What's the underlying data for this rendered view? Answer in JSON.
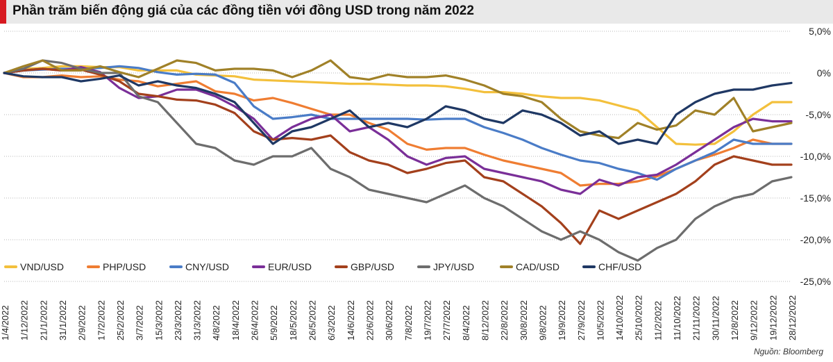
{
  "chart_data": {
    "type": "line",
    "title": "Phần trăm biến động giá của các đồng tiền với đồng USD trong năm 2022",
    "source": "Nguồn: Bloomberg",
    "ylim": [
      -25,
      5
    ],
    "yticks": [
      5,
      0,
      -5,
      -10,
      -15,
      -20,
      -25
    ],
    "ytick_labels": [
      "5,0%",
      "0%",
      "-5,0%",
      "-10,0%",
      "-15,0%",
      "-20,0%",
      "-25,0%"
    ],
    "x": [
      "1/4/2022",
      "1/12/2022",
      "21/1/2022",
      "31/1/2022",
      "2/9/2022",
      "17/2/2022",
      "25/2/2022",
      "3/7/2022",
      "15/3/2022",
      "23/3/2022",
      "31/3/2022",
      "4/8/2022",
      "18/4/2022",
      "26/4/2022",
      "5/9/2022",
      "18/5/2022",
      "26/5/2022",
      "6/3/2022",
      "14/6/2022",
      "22/6/2022",
      "30/6/2022",
      "7/8/2022",
      "19/7/2022",
      "27/7/2022",
      "8/4/2022",
      "8/12/2022",
      "22/8/2022",
      "30/8/2022",
      "9/8/2022",
      "19/9/2022",
      "27/9/2022",
      "10/5/2022",
      "14/10/2022",
      "25/10/2022",
      "11/2/2022",
      "11/10/2022",
      "21/11/2022",
      "30/11/2022",
      "12/8/2022",
      "9/12/2022",
      "19/12/2022",
      "28/12/2022"
    ],
    "series": [
      {
        "name": "VND/USD",
        "color": "#f3c03c",
        "values": [
          0,
          0.5,
          0.6,
          0.8,
          0.8,
          0.7,
          0.7,
          0.3,
          0.3,
          0.3,
          -0.2,
          -0.3,
          -0.4,
          -0.8,
          -0.9,
          -1.0,
          -1.1,
          -1.2,
          -1.3,
          -1.3,
          -1.4,
          -1.5,
          -1.5,
          -1.6,
          -1.9,
          -2.3,
          -2.3,
          -2.5,
          -2.8,
          -3.0,
          -3.0,
          -3.3,
          -3.9,
          -4.5,
          -6.5,
          -8.5,
          -8.6,
          -8.5,
          -7.0,
          -5.0,
          -3.5,
          -3.5
        ]
      },
      {
        "name": "PHP/USD",
        "color": "#ef7d32",
        "values": [
          0,
          -0.5,
          -0.5,
          -0.3,
          -0.5,
          -0.4,
          -0.8,
          -1.0,
          -1.6,
          -1.3,
          -1.0,
          -2.2,
          -2.5,
          -3.3,
          -3.0,
          -3.6,
          -4.3,
          -5.0,
          -5.0,
          -6.0,
          -6.8,
          -8.5,
          -9.2,
          -9.0,
          -9.0,
          -9.8,
          -10.5,
          -11.0,
          -11.5,
          -12.0,
          -13.5,
          -13.3,
          -13.3,
          -13.0,
          -12.4,
          -11.5,
          -10.5,
          -9.8,
          -9.0,
          -8.0,
          -8.5,
          -8.5
        ]
      },
      {
        "name": "CNY/USD",
        "color": "#4a7cc7",
        "values": [
          0,
          0.3,
          0.4,
          0.5,
          0.5,
          0.6,
          0.8,
          0.6,
          0.1,
          -0.2,
          -0.1,
          -0.2,
          -1.2,
          -4.0,
          -5.5,
          -5.3,
          -5.0,
          -5.5,
          -5.5,
          -5.5,
          -5.5,
          -5.5,
          -5.6,
          -5.5,
          -5.5,
          -6.5,
          -7.2,
          -8.0,
          -9.0,
          -9.8,
          -10.5,
          -10.8,
          -11.5,
          -12.0,
          -12.8,
          -11.5,
          -10.5,
          -9.5,
          -8.0,
          -8.5,
          -8.5,
          -8.5
        ]
      },
      {
        "name": "EUR/USD",
        "color": "#7a2f98",
        "values": [
          0,
          0.3,
          0.5,
          0.3,
          0.7,
          0.1,
          -1.8,
          -3.0,
          -2.8,
          -2.0,
          -2.0,
          -2.8,
          -4.0,
          -5.5,
          -8.0,
          -6.5,
          -5.5,
          -5.0,
          -7.0,
          -6.5,
          -8.0,
          -10.0,
          -11.0,
          -10.2,
          -10.0,
          -11.5,
          -12.0,
          -12.5,
          -13.0,
          -14.0,
          -14.5,
          -12.8,
          -13.5,
          -12.5,
          -12.2,
          -11.0,
          -9.5,
          -8.0,
          -6.5,
          -5.5,
          -5.8,
          -5.8
        ]
      },
      {
        "name": "GBP/USD",
        "color": "#a3401c",
        "values": [
          0,
          0.3,
          0.5,
          0.3,
          0.4,
          -0.2,
          -1.0,
          -2.5,
          -2.8,
          -3.2,
          -3.3,
          -3.8,
          -4.8,
          -7.0,
          -8.0,
          -7.8,
          -8.0,
          -7.5,
          -9.5,
          -10.5,
          -11.0,
          -12.0,
          -11.5,
          -10.8,
          -10.5,
          -12.5,
          -13.0,
          -14.5,
          -16.0,
          -18.0,
          -20.5,
          -16.5,
          -17.5,
          -16.5,
          -15.5,
          -14.5,
          -13.0,
          -11.0,
          -10.0,
          -10.5,
          -11.0,
          -11.0
        ]
      },
      {
        "name": "JPY/USD",
        "color": "#6d6d6d",
        "values": [
          0,
          0.5,
          1.5,
          1.2,
          0.5,
          0.0,
          0.0,
          -2.8,
          -3.5,
          -6.0,
          -8.5,
          -9.0,
          -10.5,
          -11.0,
          -10.0,
          -10.0,
          -9.0,
          -11.5,
          -12.5,
          -14.0,
          -14.5,
          -15.0,
          -15.5,
          -14.5,
          -13.5,
          -15.0,
          -16.0,
          -17.5,
          -19.0,
          -20.0,
          -19.0,
          -20.0,
          -21.5,
          -22.5,
          -21.0,
          -20.0,
          -17.5,
          -16.0,
          -15.0,
          -14.5,
          -13.0,
          -12.5
        ]
      },
      {
        "name": "CAD/USD",
        "color": "#a08128",
        "values": [
          0,
          0.8,
          1.5,
          0.3,
          0.3,
          0.8,
          0.1,
          -0.5,
          0.5,
          1.5,
          1.2,
          0.3,
          0.5,
          0.5,
          0.3,
          -0.5,
          0.3,
          1.5,
          -0.5,
          -0.8,
          -0.2,
          -0.5,
          -0.5,
          -0.3,
          -0.8,
          -1.5,
          -2.5,
          -2.8,
          -3.5,
          -5.5,
          -7.0,
          -7.5,
          -7.8,
          -6.0,
          -6.8,
          -6.3,
          -4.5,
          -5.0,
          -3.0,
          -7.0,
          -6.5,
          -6.0
        ]
      },
      {
        "name": "CHF/USD",
        "color": "#1f3864",
        "values": [
          0,
          -0.4,
          -0.5,
          -0.5,
          -1.0,
          -0.7,
          -0.3,
          -1.5,
          -1.0,
          -1.5,
          -1.8,
          -2.5,
          -3.5,
          -6.0,
          -8.5,
          -7.0,
          -6.5,
          -5.5,
          -4.5,
          -6.5,
          -6.0,
          -6.5,
          -5.5,
          -4.0,
          -4.5,
          -5.5,
          -6.0,
          -4.5,
          -5.0,
          -6.0,
          -7.5,
          -7.0,
          -8.5,
          -8.0,
          -8.5,
          -5.0,
          -3.5,
          -2.5,
          -2.0,
          -2.0,
          -1.5,
          -1.2
        ]
      }
    ]
  }
}
